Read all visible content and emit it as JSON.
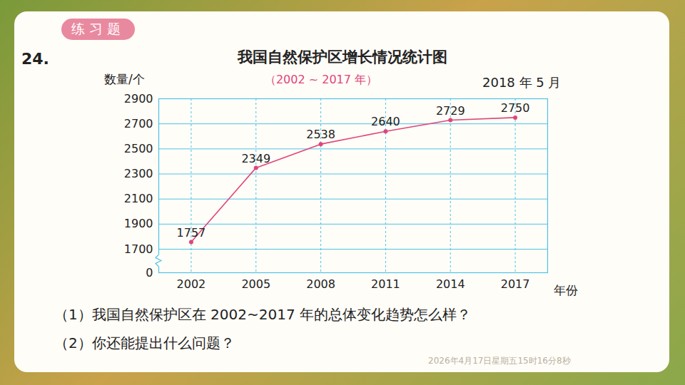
{
  "page": {
    "badge": "练习题",
    "number": "24.",
    "questions": [
      "（1）我国自然保护区在 2002~2017 年的总体变化趋势怎么样？",
      "（2）你还能提出什么问题？"
    ],
    "timestamp": "2026年4月17日星期五15时16分8秒"
  },
  "chart_data": {
    "type": "line",
    "title": "我国自然保护区增长情况统计图",
    "subtitle": "（2002 ~ 2017 年）",
    "date": "2018 年 5 月",
    "y_label": "数量/个",
    "x_label": "年份",
    "x": [
      2002,
      2005,
      2008,
      2011,
      2014,
      2017
    ],
    "values": [
      1757,
      2349,
      2538,
      2640,
      2729,
      2750
    ],
    "color": "#e0457b",
    "xlim": [
      2000.5,
      2018.5
    ],
    "xticks": [
      2002,
      2005,
      2008,
      2011,
      2014,
      2017
    ],
    "ylim": [
      0,
      2900
    ],
    "yticks": [
      0,
      1700,
      1900,
      2100,
      2300,
      2500,
      2700,
      2900
    ],
    "grid": true,
    "data_labels": true,
    "marker": "circle"
  }
}
